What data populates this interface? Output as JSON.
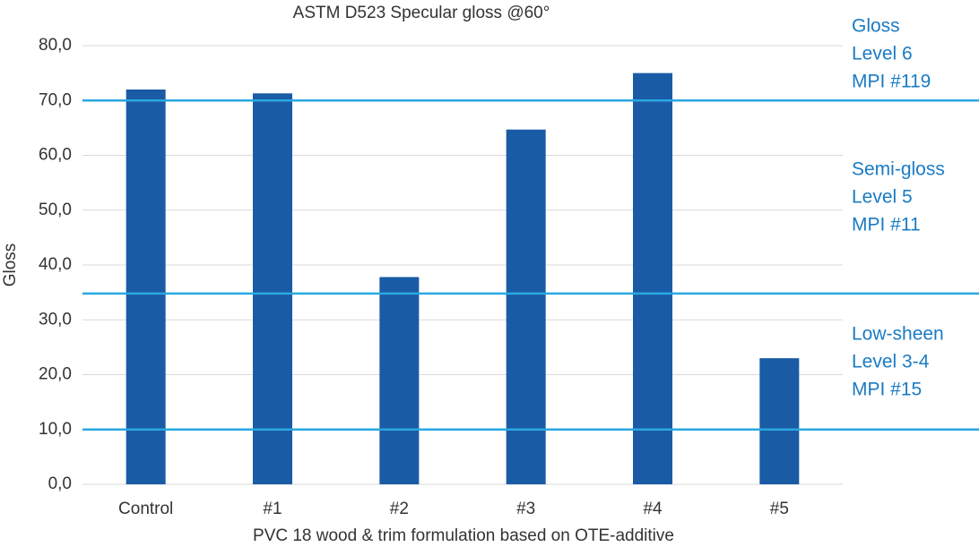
{
  "chart_data": {
    "type": "bar",
    "title": "ASTM D523  Specular  gloss @60°",
    "x_label": "PVC 18 wood & trim formulation based on OTE-additive",
    "y_label": "Gloss",
    "categories": [
      "Control",
      "#1",
      "#2",
      "#3",
      "#4",
      "#5"
    ],
    "values": [
      72.0,
      71.3,
      37.8,
      64.7,
      75.0,
      23.0
    ],
    "color": "#1a5ba6",
    "ylim": [
      0,
      80
    ],
    "yticks": [
      {
        "value": 0,
        "label": "0,0"
      },
      {
        "value": 10,
        "label": "10,0"
      },
      {
        "value": 20,
        "label": "20,0"
      },
      {
        "value": 30,
        "label": "30,0"
      },
      {
        "value": 40,
        "label": "40,0"
      },
      {
        "value": 50,
        "label": "50,0"
      },
      {
        "value": 60,
        "label": "60,0"
      },
      {
        "value": 70,
        "label": "70,0"
      },
      {
        "value": 80,
        "label": "80,0"
      }
    ],
    "grid": true,
    "reference_lines": [
      {
        "value": 70,
        "color": "#29a8e0"
      },
      {
        "value": 34.8,
        "color": "#29a8e0"
      },
      {
        "value": 10,
        "color": "#29a8e0"
      }
    ],
    "annotations": [
      [
        "Gloss",
        "Level 6",
        "MPI #119"
      ],
      [
        "Semi-gloss",
        "Level 5",
        "MPI #11"
      ],
      [
        "Low-sheen",
        "Level 3-4",
        "MPI #15"
      ]
    ]
  }
}
